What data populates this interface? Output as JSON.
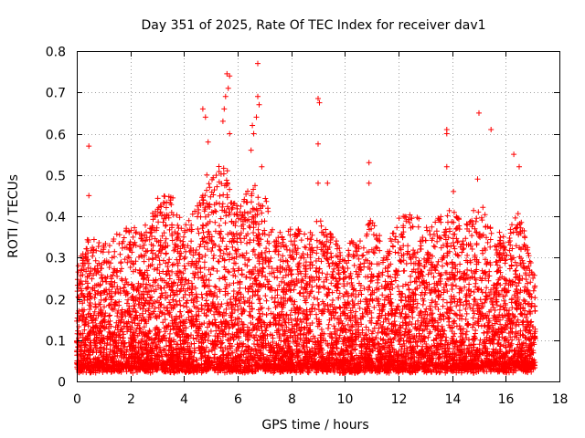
{
  "chart_data": {
    "type": "scatter",
    "title": "Day 351 of 2025, Rate Of TEC Index for receiver dav1",
    "xlabel": "GPS time / hours",
    "ylabel": "ROTI / TECUs",
    "xlim": [
      0,
      18
    ],
    "ylim": [
      0,
      0.8
    ],
    "x_ticks": [
      "0",
      "2",
      "4",
      "6",
      "8",
      "10",
      "12",
      "14",
      "16",
      "18"
    ],
    "y_ticks": [
      "0",
      "0.1",
      "0.2",
      "0.3",
      "0.4",
      "0.5",
      "0.6",
      "0.7",
      "0.8"
    ],
    "grid": true,
    "marker": "+",
    "series_color": "#ff0000",
    "x_range_observed": [
      0,
      17.1
    ],
    "notable_points": [
      {
        "x": 0.45,
        "y": 0.57
      },
      {
        "x": 0.45,
        "y": 0.45
      },
      {
        "x": 4.7,
        "y": 0.66
      },
      {
        "x": 4.8,
        "y": 0.64
      },
      {
        "x": 4.9,
        "y": 0.58
      },
      {
        "x": 4.85,
        "y": 0.5
      },
      {
        "x": 5.6,
        "y": 0.745
      },
      {
        "x": 5.7,
        "y": 0.74
      },
      {
        "x": 5.65,
        "y": 0.71
      },
      {
        "x": 5.55,
        "y": 0.69
      },
      {
        "x": 5.5,
        "y": 0.66
      },
      {
        "x": 5.45,
        "y": 0.63
      },
      {
        "x": 5.7,
        "y": 0.6
      },
      {
        "x": 6.55,
        "y": 0.62
      },
      {
        "x": 6.6,
        "y": 0.6
      },
      {
        "x": 6.75,
        "y": 0.77
      },
      {
        "x": 6.75,
        "y": 0.69
      },
      {
        "x": 6.8,
        "y": 0.67
      },
      {
        "x": 6.7,
        "y": 0.64
      },
      {
        "x": 6.5,
        "y": 0.56
      },
      {
        "x": 6.9,
        "y": 0.52
      },
      {
        "x": 9.0,
        "y": 0.685
      },
      {
        "x": 9.05,
        "y": 0.675
      },
      {
        "x": 9.0,
        "y": 0.575
      },
      {
        "x": 9.0,
        "y": 0.48
      },
      {
        "x": 9.35,
        "y": 0.48
      },
      {
        "x": 10.9,
        "y": 0.53
      },
      {
        "x": 10.9,
        "y": 0.48
      },
      {
        "x": 13.8,
        "y": 0.61
      },
      {
        "x": 13.8,
        "y": 0.6
      },
      {
        "x": 13.8,
        "y": 0.52
      },
      {
        "x": 14.05,
        "y": 0.46
      },
      {
        "x": 14.95,
        "y": 0.49
      },
      {
        "x": 15.0,
        "y": 0.65
      },
      {
        "x": 15.45,
        "y": 0.61
      },
      {
        "x": 16.3,
        "y": 0.55
      },
      {
        "x": 16.5,
        "y": 0.52
      }
    ],
    "activity_profile": [
      {
        "x": 0.0,
        "max": 0.28
      },
      {
        "x": 0.5,
        "max": 0.36
      },
      {
        "x": 1.0,
        "max": 0.33
      },
      {
        "x": 1.5,
        "max": 0.36
      },
      {
        "x": 2.0,
        "max": 0.38
      },
      {
        "x": 2.5,
        "max": 0.37
      },
      {
        "x": 3.0,
        "max": 0.48
      },
      {
        "x": 3.5,
        "max": 0.46
      },
      {
        "x": 4.0,
        "max": 0.38
      },
      {
        "x": 4.5,
        "max": 0.43
      },
      {
        "x": 5.0,
        "max": 0.5
      },
      {
        "x": 5.5,
        "max": 0.55
      },
      {
        "x": 6.0,
        "max": 0.42
      },
      {
        "x": 6.5,
        "max": 0.5
      },
      {
        "x": 7.0,
        "max": 0.45
      },
      {
        "x": 7.5,
        "max": 0.36
      },
      {
        "x": 8.0,
        "max": 0.38
      },
      {
        "x": 8.5,
        "max": 0.36
      },
      {
        "x": 9.0,
        "max": 0.4
      },
      {
        "x": 9.5,
        "max": 0.36
      },
      {
        "x": 10.0,
        "max": 0.33
      },
      {
        "x": 10.5,
        "max": 0.35
      },
      {
        "x": 11.0,
        "max": 0.4
      },
      {
        "x": 11.5,
        "max": 0.32
      },
      {
        "x": 12.0,
        "max": 0.4
      },
      {
        "x": 12.5,
        "max": 0.41
      },
      {
        "x": 13.0,
        "max": 0.38
      },
      {
        "x": 13.5,
        "max": 0.4
      },
      {
        "x": 14.0,
        "max": 0.42
      },
      {
        "x": 14.5,
        "max": 0.38
      },
      {
        "x": 15.0,
        "max": 0.44
      },
      {
        "x": 15.5,
        "max": 0.38
      },
      {
        "x": 16.0,
        "max": 0.35
      },
      {
        "x": 16.5,
        "max": 0.42
      },
      {
        "x": 17.1,
        "max": 0.25
      }
    ]
  }
}
